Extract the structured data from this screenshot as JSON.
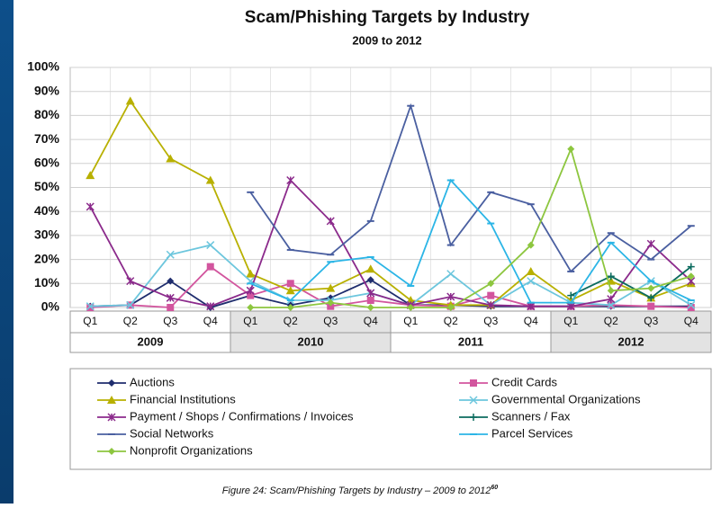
{
  "chart_data": {
    "type": "line",
    "title": "Scam/Phishing Targets by Industry",
    "subtitle": "2009 to 2012",
    "categories": [
      "Q1",
      "Q2",
      "Q3",
      "Q4",
      "Q1",
      "Q2",
      "Q3",
      "Q4",
      "Q1",
      "Q2",
      "Q3",
      "Q4",
      "Q1",
      "Q2",
      "Q3",
      "Q4"
    ],
    "category_groups": [
      "2009",
      "2010",
      "2011",
      "2012"
    ],
    "ylim": [
      0,
      100
    ],
    "yticks": [
      {
        "value": 0,
        "label": "0%"
      },
      {
        "value": 10,
        "label": "10%"
      },
      {
        "value": 20,
        "label": "20%"
      },
      {
        "value": 30,
        "label": "30%"
      },
      {
        "value": 40,
        "label": "40%"
      },
      {
        "value": 50,
        "label": "50%"
      },
      {
        "value": 60,
        "label": "60%"
      },
      {
        "value": 70,
        "label": "70%"
      },
      {
        "value": 80,
        "label": "80%"
      },
      {
        "value": 90,
        "label": "90%"
      },
      {
        "value": 100,
        "label": "100%"
      }
    ],
    "grid": true,
    "legend": "bottom",
    "series": [
      {
        "name": "Auctions",
        "color": "#1f2d6e",
        "marker": "diamond",
        "values": [
          0.5,
          1,
          11,
          0,
          5,
          1,
          4,
          11.5,
          1,
          1,
          0.5,
          0.5,
          0.5,
          0.5,
          0.5,
          0.5
        ]
      },
      {
        "name": "Credit Cards",
        "color": "#d2559e",
        "marker": "square",
        "values": [
          0,
          1,
          0,
          17,
          5,
          10,
          0.5,
          3,
          1,
          0.5,
          5,
          0.5,
          0.5,
          1,
          0.5,
          0
        ]
      },
      {
        "name": "Financial Institutions",
        "color": "#b8b000",
        "marker": "triangle",
        "values": [
          55,
          86,
          62,
          53,
          14,
          7,
          8,
          16,
          3,
          1,
          1,
          15,
          3,
          11,
          4,
          10
        ]
      },
      {
        "name": "Governmental Organizations",
        "color": "#6cc6dd",
        "marker": "x",
        "values": [
          0.5,
          1,
          22,
          26,
          11,
          3,
          3,
          6,
          1,
          14,
          1,
          11,
          2,
          1,
          11,
          1
        ]
      },
      {
        "name": "Payment / Shops / Confirmations / Invoices",
        "color": "#8b2a8b",
        "marker": "asterisk",
        "values": [
          42,
          11,
          4,
          0.5,
          7,
          53,
          36,
          6,
          1,
          4.5,
          1,
          0.5,
          0.5,
          3.5,
          26.5,
          11
        ]
      },
      {
        "name": "Scanners / Fax",
        "color": "#0b6b5e",
        "marker": "plus",
        "values": [
          null,
          null,
          null,
          null,
          null,
          null,
          null,
          null,
          null,
          null,
          null,
          null,
          5,
          13,
          4,
          17
        ]
      },
      {
        "name": "Social Networks",
        "color": "#4a5fa0",
        "marker": "dash",
        "values": [
          null,
          null,
          null,
          null,
          48,
          24,
          22,
          36,
          84,
          26,
          48,
          43,
          15,
          31,
          20,
          34
        ]
      },
      {
        "name": "Parcel Services",
        "color": "#2bb5e6",
        "marker": "dash",
        "values": [
          null,
          null,
          null,
          null,
          10,
          3,
          19,
          21,
          9,
          53,
          35,
          2,
          2,
          27,
          11,
          3
        ]
      },
      {
        "name": "Nonprofit Organizations",
        "color": "#8dc63f",
        "marker": "diamond",
        "values": [
          null,
          null,
          null,
          null,
          0,
          0,
          2,
          0,
          0,
          0,
          10,
          26,
          66,
          7,
          8,
          13
        ]
      }
    ],
    "caption": "Figure 24: Scam/Phishing Targets by Industry – 2009 to 2012",
    "caption_note": "60"
  }
}
